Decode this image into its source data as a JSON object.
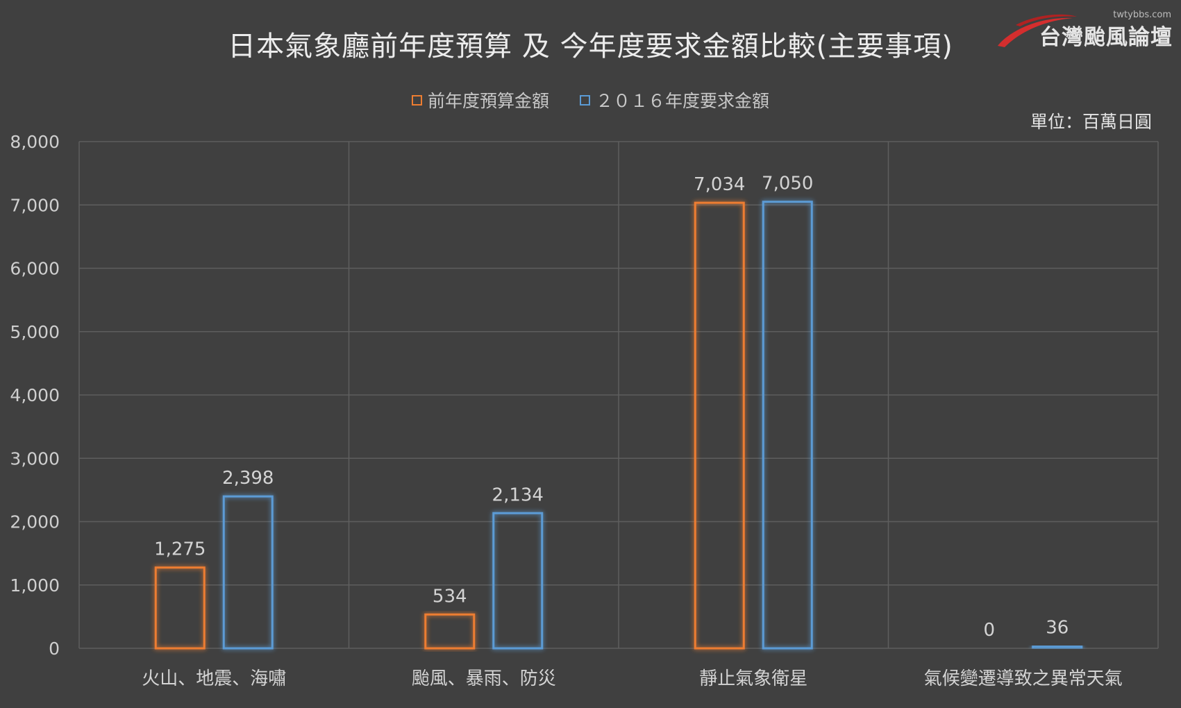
{
  "chart_data": {
    "type": "bar",
    "title": "日本氣象廳前年度預算 及 今年度要求金額比較(主要事項)",
    "unit_label": "單位：百萬日圓",
    "categories": [
      "火山、地震、海嘯",
      "颱風、暴雨、防災",
      "靜止氣象衛星",
      "氣候變遷導致之異常天氣"
    ],
    "series": [
      {
        "name": "前年度預算金額",
        "values": [
          1275,
          534,
          7034,
          0
        ],
        "color": "#ed7d31"
      },
      {
        "name": "２０１６年度要求金額",
        "values": [
          2398,
          2134,
          7050,
          36
        ],
        "color": "#5b9bd5"
      }
    ],
    "data_labels": [
      [
        "1,275",
        "534",
        "7,034",
        "0"
      ],
      [
        "2,398",
        "2,134",
        "7,050",
        "36"
      ]
    ],
    "ylim": [
      0,
      8000
    ],
    "yticks": [
      0,
      1000,
      2000,
      3000,
      4000,
      5000,
      6000,
      7000,
      8000
    ],
    "ytick_labels": [
      "0",
      "1,000",
      "2,000",
      "3,000",
      "4,000",
      "5,000",
      "6,000",
      "7,000",
      "8,000"
    ],
    "grid": true,
    "legend_position": "top-center",
    "xlabel": "",
    "ylabel": ""
  },
  "watermark": {
    "url": "twtybbs.com",
    "name": "台灣颱風論壇"
  },
  "colors": {
    "background": "#404040",
    "grid": "#5e5e5e",
    "orange": "#ed7d31",
    "blue": "#5b9bd5",
    "watermark_red": "#d42e2e"
  }
}
